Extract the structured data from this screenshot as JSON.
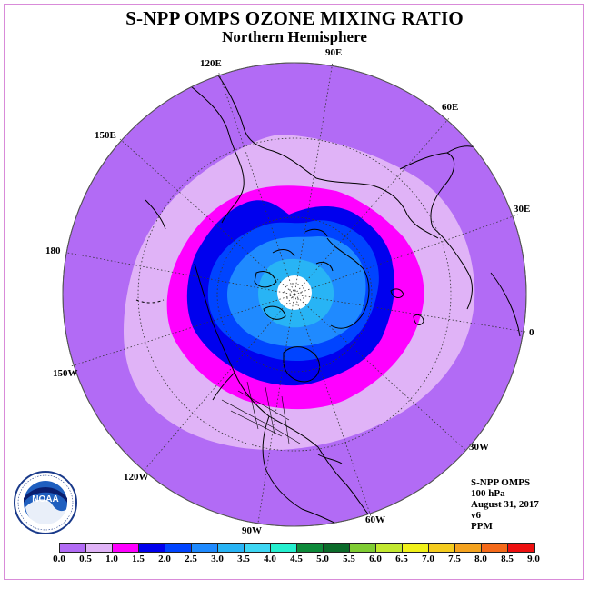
{
  "title": "S-NPP OMPS OZONE MIXING RATIO",
  "subtitle": "Northern Hemisphere",
  "longitude_labels": {
    "e120": "120E",
    "e90": "90E",
    "e60": "60E",
    "e150": "150E",
    "e30": "30E",
    "deg180": "180",
    "deg0": "0",
    "w150": "150W",
    "w30": "30W",
    "w120": "120W",
    "w60": "60W",
    "w90": "90W"
  },
  "info": {
    "instrument": "S-NPP OMPS",
    "level": "100 hPa",
    "date": "August 31, 2017",
    "version": "v6",
    "units": "PPM"
  },
  "logo": {
    "text": "NOAA",
    "ring_text": "NATIONAL OCEANIC AND ATMOSPHERIC ADMINISTRATION · U.S. DEPARTMENT OF COMMERCE"
  },
  "colorbar": {
    "ticks": [
      "0.0",
      "0.5",
      "1.0",
      "1.5",
      "2.0",
      "2.5",
      "3.0",
      "3.5",
      "4.0",
      "4.5",
      "5.0",
      "5.5",
      "6.0",
      "6.5",
      "7.0",
      "7.5",
      "8.0",
      "8.5",
      "9.0"
    ],
    "colors": [
      "#b26bf5",
      "#e0b3f7",
      "#ff00ff",
      "#0000ee",
      "#0044ff",
      "#1f8aff",
      "#28b4f5",
      "#3ed6f3",
      "#25efcf",
      "#0e8a3a",
      "#0b6b2a",
      "#7fcc33",
      "#c2e830",
      "#f1f11a",
      "#f5cc1f",
      "#f5a31f",
      "#f56a1a",
      "#ee1010",
      "#8c5a3a"
    ]
  },
  "map_data": {
    "projection": "north polar stereographic",
    "colors": {
      "0.0-0.5": "#b26bf5",
      "0.5-1.0": "#e0b3f7",
      "1.0-1.5": "#ff00ff",
      "1.5-2.0": "#0000ee",
      "2.0-2.5": "#0044ff",
      "2.5-3.0": "#1f8aff",
      "3.0-3.5": "#28b4f5",
      "no_data": "#ffffff"
    }
  }
}
